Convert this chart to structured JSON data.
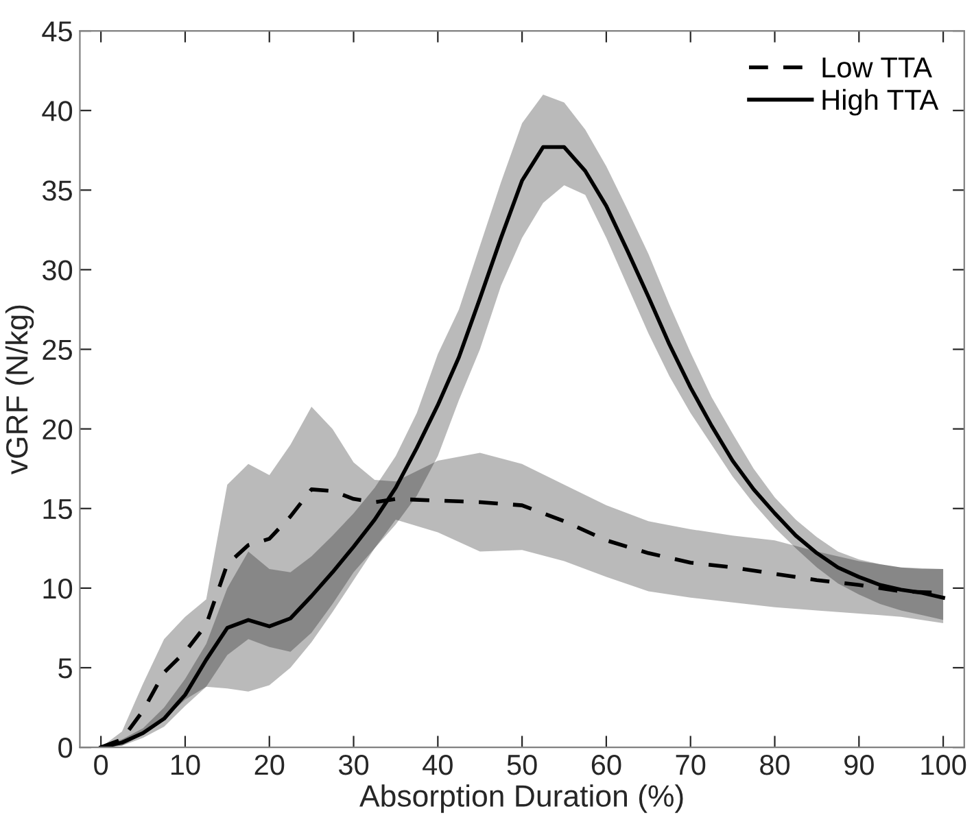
{
  "chart_data": {
    "type": "line",
    "xlabel": "Absorption Duration (%)",
    "ylabel": "vGRF (N/kg)",
    "xlim": [
      -2.5,
      102.5
    ],
    "xticks": [
      0,
      10,
      20,
      30,
      40,
      50,
      60,
      70,
      80,
      90,
      100
    ],
    "ylim": [
      0,
      45
    ],
    "yticks": [
      0,
      5,
      10,
      15,
      20,
      25,
      30,
      35,
      40,
      45
    ],
    "grid": false,
    "legend": "top right",
    "marker": "none",
    "series": [
      {
        "name": "Low TTA",
        "color": "#000000",
        "line_style": "dashed",
        "x": [
          0,
          2.5,
          5,
          7.5,
          10,
          12.5,
          15,
          17.5,
          20,
          22.5,
          25,
          27.5,
          30,
          32.5,
          35,
          40,
          45,
          50,
          55,
          60,
          65,
          70,
          75,
          80,
          85,
          90,
          95,
          100
        ],
        "values": [
          0,
          0.5,
          2.3,
          4.7,
          6.0,
          7.7,
          11.5,
          12.7,
          13.1,
          14.5,
          16.2,
          16.1,
          15.6,
          15.4,
          15.6,
          15.5,
          15.4,
          15.2,
          14.2,
          13.0,
          12.2,
          11.6,
          11.3,
          10.9,
          10.5,
          10.2,
          9.8,
          9.7
        ],
        "upper": [
          0,
          1.0,
          4.0,
          6.8,
          8.2,
          9.3,
          16.5,
          17.8,
          17.1,
          19.0,
          21.4,
          20.0,
          17.9,
          16.8,
          16.7,
          18.0,
          18.5,
          17.8,
          16.5,
          15.2,
          14.2,
          13.7,
          13.3,
          13.0,
          12.3,
          11.7,
          11.3,
          11.2
        ],
        "lower": [
          0,
          0.1,
          0.8,
          1.8,
          3.0,
          3.8,
          3.7,
          3.5,
          3.9,
          5.0,
          6.6,
          8.5,
          10.5,
          12.5,
          14.3,
          13.5,
          12.3,
          12.4,
          11.7,
          10.7,
          9.8,
          9.4,
          9.1,
          8.8,
          8.6,
          8.4,
          8.2,
          7.8
        ]
      },
      {
        "name": "High TTA",
        "color": "#000000",
        "line_style": "solid",
        "x": [
          0,
          2.5,
          5,
          7.5,
          10,
          12.5,
          15,
          17.5,
          20,
          22.5,
          25,
          27.5,
          30,
          32.5,
          35,
          37.5,
          40,
          42.5,
          45,
          47.5,
          50,
          52.5,
          55,
          57.5,
          60,
          62.5,
          65,
          67.5,
          70,
          72.5,
          75,
          77.5,
          80,
          82.5,
          85,
          87.5,
          90,
          92.5,
          95,
          97.5,
          100
        ],
        "values": [
          0,
          0.3,
          0.9,
          1.8,
          3.3,
          5.5,
          7.5,
          8.0,
          7.6,
          8.1,
          9.5,
          11.0,
          12.6,
          14.3,
          16.3,
          18.8,
          21.5,
          24.5,
          28.2,
          32.0,
          35.6,
          37.7,
          37.7,
          36.2,
          34.0,
          31.2,
          28.3,
          25.3,
          22.6,
          20.2,
          18.0,
          16.2,
          14.7,
          13.3,
          12.2,
          11.3,
          10.7,
          10.2,
          9.9,
          9.7,
          9.4
        ],
        "upper": [
          0.1,
          0.5,
          1.2,
          2.5,
          4.3,
          6.5,
          10.0,
          12.3,
          11.2,
          11.0,
          12.0,
          13.3,
          14.7,
          16.3,
          18.3,
          21.0,
          24.7,
          27.5,
          31.5,
          35.5,
          39.2,
          41.0,
          40.5,
          38.8,
          36.5,
          33.8,
          31.0,
          27.8,
          24.8,
          22.0,
          19.7,
          17.5,
          15.7,
          14.3,
          13.2,
          12.3,
          11.8,
          11.5,
          11.3,
          11.2,
          11.2
        ],
        "lower": [
          0,
          0.1,
          0.6,
          1.3,
          2.6,
          3.8,
          5.8,
          6.8,
          6.3,
          6.0,
          7.2,
          9.0,
          11.0,
          12.5,
          14.0,
          15.8,
          18.3,
          21.8,
          25.0,
          29.0,
          32.0,
          34.2,
          35.3,
          34.7,
          32.0,
          29.0,
          26.0,
          23.3,
          21.0,
          19.0,
          17.0,
          15.3,
          13.8,
          12.5,
          11.3,
          10.3,
          9.6,
          9.0,
          8.6,
          8.3,
          8.0
        ]
      }
    ]
  }
}
